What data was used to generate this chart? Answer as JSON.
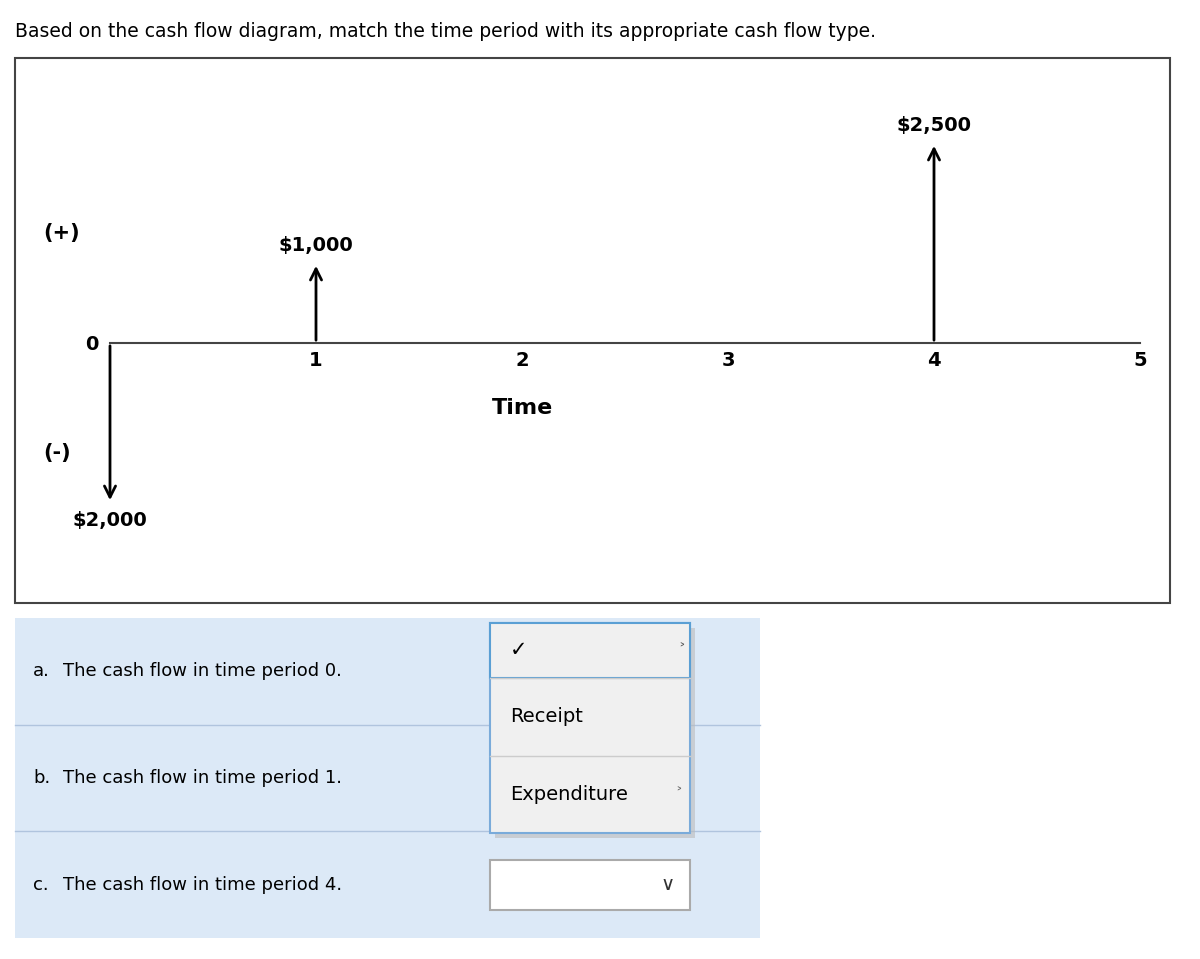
{
  "title": "Based on the cash flow diagram, match the time period with its appropriate cash flow type.",
  "title_fontsize": 13.5,
  "bg_color": "#ffffff",
  "arrows": [
    {
      "time": 0,
      "direction": "down",
      "magnitude": 2000,
      "label": "$2,000"
    },
    {
      "time": 1,
      "direction": "up",
      "magnitude": 1000,
      "label": "$1,000"
    },
    {
      "time": 4,
      "direction": "up",
      "magnitude": 2500,
      "label": "$2,500"
    }
  ],
  "plus_label": "(+)",
  "minus_label": "(-)",
  "time_label": "Time",
  "arrow_color": "#000000",
  "questions": [
    {
      "letter": "a.",
      "text": "The cash flow in time period 0."
    },
    {
      "letter": "b.",
      "text": "The cash flow in time period 1."
    },
    {
      "letter": "c.",
      "text": "The cash flow in time period 4."
    }
  ],
  "dropdown_options": [
    "Receipt",
    "Expenditure"
  ],
  "dropdown_check": "✓",
  "dropdown_chevron": "⌄",
  "question_bg": "#dce9f7",
  "question_fontsize": 13
}
